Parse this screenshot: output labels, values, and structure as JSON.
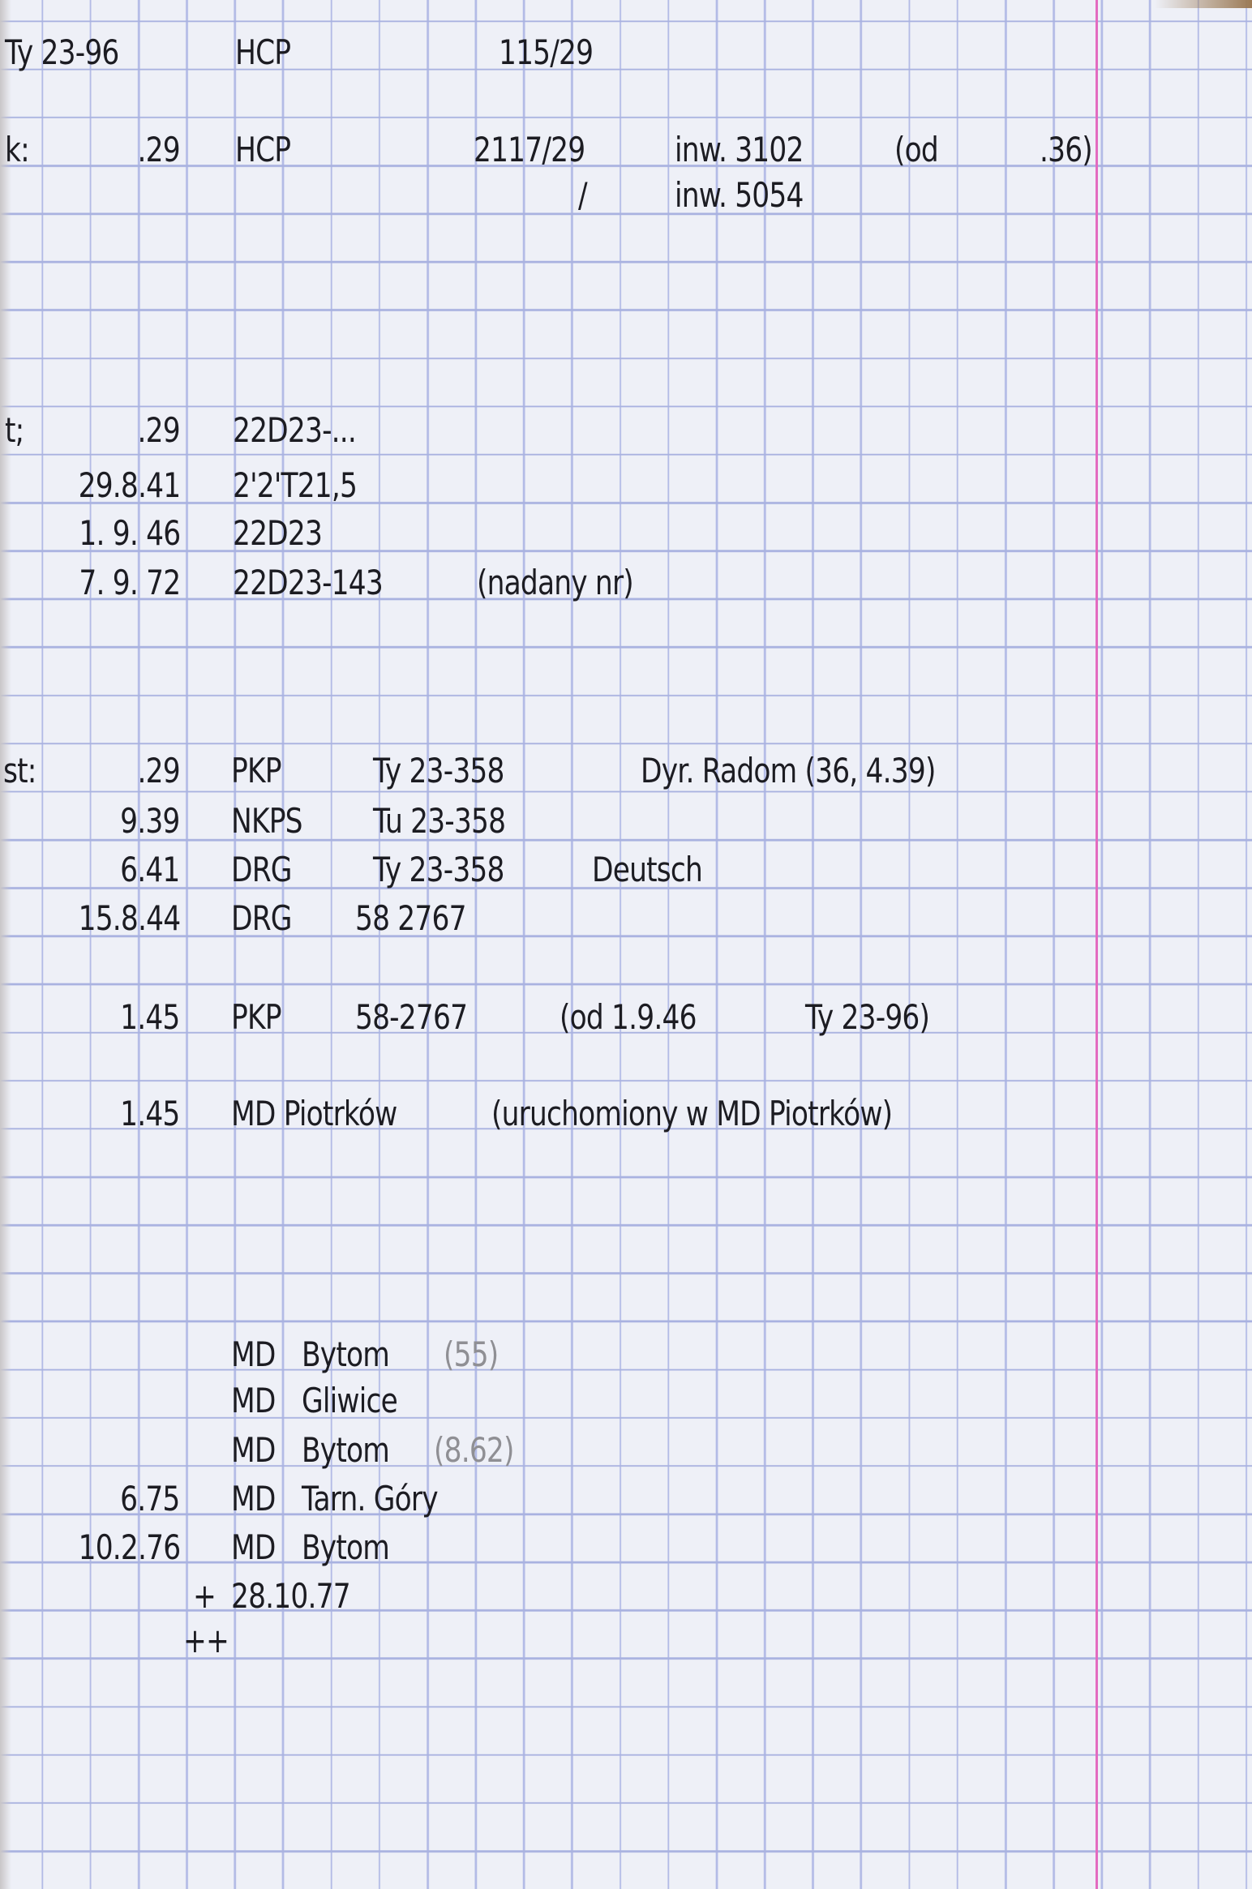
{
  "header": {
    "model": "Ty 23-96",
    "maker": "HCP",
    "fab_no": "115/29"
  },
  "k": {
    "label": "k:",
    "date": ".29",
    "maker": "HCP",
    "fab_no": "2117/29",
    "inv1": "inw. 3102",
    "note_open": "(od",
    "note_year": ".36)",
    "slash": "/",
    "inv2": "inw. 5054"
  },
  "t": {
    "label": "t;",
    "rows": [
      {
        "date": ".29",
        "text": "22D23-..."
      },
      {
        "date": "29.8.41",
        "text": "2'2'T21,5"
      },
      {
        "date": "1. 9. 46",
        "text": "22D23"
      },
      {
        "date": "7. 9. 72",
        "text": "22D23-143",
        "note": "(nadany nr)"
      }
    ]
  },
  "st": {
    "label": "st:",
    "rows": [
      {
        "date": ".29",
        "owner": "PKP",
        "number": "Ty 23-358",
        "note": "Dyr. Radom (36, 4.39)"
      },
      {
        "date": "9.39",
        "owner": "NKPS",
        "number": "Tu 23-358"
      },
      {
        "date": "6.41",
        "owner": "DRG",
        "number": "Ty 23-358",
        "note": "Deutsch"
      },
      {
        "date": "15.8.44",
        "owner": "DRG",
        "number": "58 2767"
      },
      {
        "date": "1.45",
        "owner": "PKP",
        "number": "58-2767",
        "note": "(od 1.9.46",
        "note2": "Ty 23-96)"
      },
      {
        "date": "1.45",
        "owner": "MD Piotrków",
        "note": "(uruchomiony w MD Piotrków)"
      }
    ]
  },
  "depots": [
    {
      "date": "",
      "md": "MD",
      "place": "Bytom",
      "pencil": "(55)"
    },
    {
      "date": "",
      "md": "MD",
      "place": "Gliwice"
    },
    {
      "date": "",
      "md": "MD",
      "place": "Bytom",
      "pencil": "(8.62)"
    },
    {
      "date": "6.75",
      "md": "MD",
      "place": "Tarn. Góry"
    },
    {
      "date": "10.2.76",
      "md": "MD",
      "place": "Bytom"
    }
  ],
  "withdrawn": {
    "mark": "+",
    "date": "28.10.77",
    "scrapped_mark": "++"
  },
  "colors": {
    "paper": "#eef0f7",
    "grid": "#a9b2e0",
    "margin": "#e36bc0",
    "ink": "#1c1c22",
    "pencil": "#8f8f94"
  }
}
